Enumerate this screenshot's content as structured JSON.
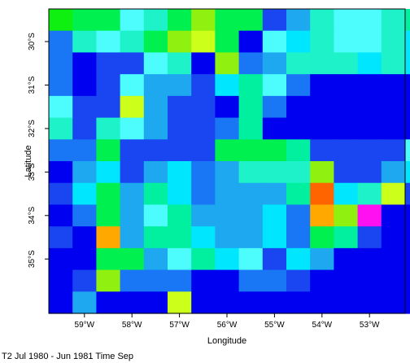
{
  "chart_data": {
    "type": "heatmap",
    "title": "T2 Jul 1980 - Jun 1981 Time Sep",
    "xlabel": "Longitude",
    "ylabel": "Latitude",
    "xlim": [
      -59.75,
      -52.25
    ],
    "ylim": [
      -36.25,
      -29.25
    ],
    "x_tick_values": [
      -59,
      -58,
      -57,
      -56,
      -55,
      -54,
      -53
    ],
    "x_tick_labels": [
      "59°W",
      "58°W",
      "57°W",
      "56°W",
      "55°W",
      "54°W",
      "53°W"
    ],
    "y_tick_values": [
      -30,
      -31,
      -32,
      -33,
      -34,
      -35
    ],
    "y_tick_labels": [
      "30°S",
      "31°S",
      "32°S",
      "33°S",
      "34°S",
      "35°S"
    ],
    "cell_size_deg": 0.5,
    "grid_origin": {
      "lon": -59.5,
      "lat": -29.5
    },
    "colors": {
      "B": "#0000f0",
      "b": "#1a46f2",
      "a": "#1976f4",
      "l": "#1da8f0",
      "c": "#00e6ff",
      "C": "#4dfcfc",
      "t": "#1ef2c8",
      "m": "#00f0a0",
      "g": "#00f050",
      "G": "#10f010",
      "y": "#90f010",
      "Y": "#ccff1a",
      "o": "#ffa800",
      "r": "#ff6400",
      "p": "#ff10f0"
    },
    "rows": [
      "GggCtgyggbltCCtm",
      "atCtgyYgBCctCCtc",
      "aBbbCtByaltttctc",
      "aBbCllbcmCaBBBBB",
      "CbbYlbbBmaBBBBBB",
      "tbtClbbamBBBBBBB",
      "aagbbbbgggmbbbbC",
      "Blcblcaltttybblc",
      "bcglmcalllmrctYb",
      "BaglCmlllcaoypBB",
      "bBolmmcllcagmbBB",
      "BBgglCmcCbclBBBB",
      "BbyaaaBBaabBBBBB",
      "BlBBBYBBBBBBBBBB"
    ]
  }
}
